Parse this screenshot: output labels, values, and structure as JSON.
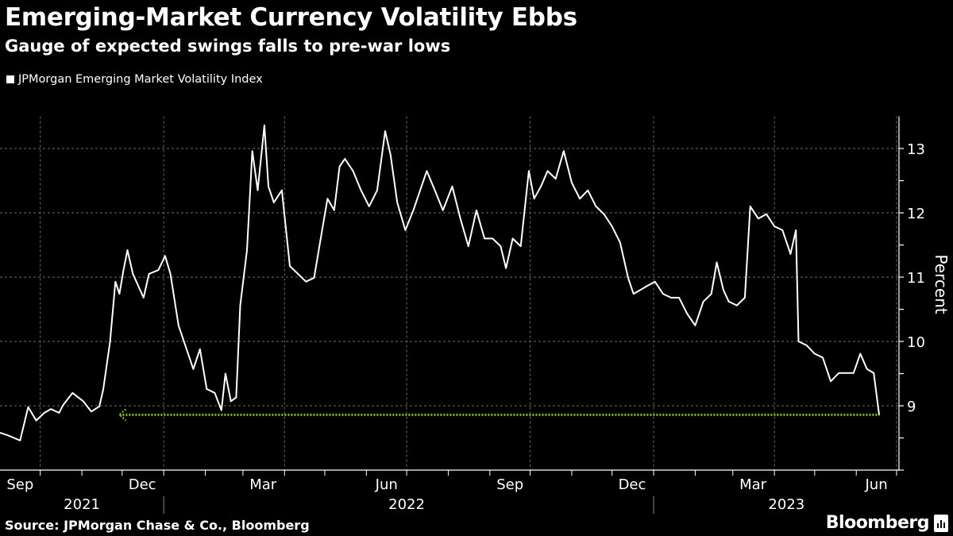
{
  "title": "Emerging-Market Currency Volatility Ebbs",
  "subtitle": "Gauge of expected swings falls to pre-war lows",
  "source": "Source: JPMorgan Chase & Co., Bloomberg",
  "brand": "Bloomberg",
  "chart_data": {
    "type": "line",
    "title": "Emerging-Market Currency Volatility Ebbs",
    "subtitle": "Gauge of expected swings falls to pre-war lows",
    "ylabel": "Percent",
    "ylim": [
      8,
      13.5
    ],
    "yticks": [
      9,
      10,
      11,
      12,
      13
    ],
    "xlim": [
      "2021-09-01",
      "2023-07-01"
    ],
    "x_tick_labels": [
      {
        "label": "Sep",
        "month": "2021-09"
      },
      {
        "label": "Dec",
        "month": "2021-12"
      },
      {
        "label": "Mar",
        "month": "2022-03"
      },
      {
        "label": "Jun",
        "month": "2022-06"
      },
      {
        "label": "Sep",
        "month": "2022-09"
      },
      {
        "label": "Dec",
        "month": "2022-12"
      },
      {
        "label": "Mar",
        "month": "2023-03"
      },
      {
        "label": "Jun",
        "month": "2023-06"
      }
    ],
    "year_labels": [
      {
        "label": "2021",
        "center": "2021-11-01"
      },
      {
        "label": "2022",
        "center": "2022-07-01"
      },
      {
        "label": "2023",
        "center": "2023-04-10"
      }
    ],
    "grid": true,
    "legend_placement": "top-left",
    "colors": {
      "series": "#ffffff",
      "reference": "#7fc31c",
      "grid": "#6b6b6b",
      "background": "#000000"
    },
    "series": [
      {
        "name": "JPMorgan Emerging Market Volatility Index",
        "x": [
          "2021-09-01",
          "2021-09-07",
          "2021-09-16",
          "2021-09-22",
          "2021-09-28",
          "2021-10-04",
          "2021-10-09",
          "2021-10-15",
          "2021-10-18",
          "2021-10-25",
          "2021-11-02",
          "2021-11-08",
          "2021-11-14",
          "2021-11-17",
          "2021-11-22",
          "2021-11-26",
          "2021-11-29",
          "2021-12-02",
          "2021-12-05",
          "2021-12-09",
          "2021-12-17",
          "2021-12-21",
          "2021-12-28",
          "2022-01-02",
          "2022-01-06",
          "2022-01-12",
          "2022-01-18",
          "2022-01-23",
          "2022-01-28",
          "2022-02-02",
          "2022-02-08",
          "2022-02-13",
          "2022-02-16",
          "2022-02-20",
          "2022-02-24",
          "2022-02-27",
          "2022-03-04",
          "2022-03-08",
          "2022-03-12",
          "2022-03-17",
          "2022-03-20",
          "2022-03-24",
          "2022-03-30",
          "2022-04-05",
          "2022-04-11",
          "2022-04-17",
          "2022-04-23",
          "2022-04-29",
          "2022-05-03",
          "2022-05-08",
          "2022-05-12",
          "2022-05-16",
          "2022-05-22",
          "2022-05-28",
          "2022-06-03",
          "2022-06-09",
          "2022-06-15",
          "2022-06-19",
          "2022-06-24",
          "2022-06-30",
          "2022-07-06",
          "2022-07-12",
          "2022-07-16",
          "2022-07-22",
          "2022-07-28",
          "2022-08-04",
          "2022-08-10",
          "2022-08-16",
          "2022-08-22",
          "2022-08-28",
          "2022-09-03",
          "2022-09-09",
          "2022-09-13",
          "2022-09-18",
          "2022-09-24",
          "2022-09-30",
          "2022-10-04",
          "2022-10-09",
          "2022-10-14",
          "2022-10-20",
          "2022-10-26",
          "2022-11-01",
          "2022-11-07",
          "2022-11-13",
          "2022-11-19",
          "2022-11-25",
          "2022-12-01",
          "2022-12-07",
          "2022-12-13",
          "2022-12-17",
          "2022-12-22",
          "2022-12-27",
          "2023-01-02",
          "2023-01-08",
          "2023-01-14",
          "2023-01-20",
          "2023-01-26",
          "2023-02-01",
          "2023-02-07",
          "2023-02-13",
          "2023-02-17",
          "2023-02-22",
          "2023-02-26",
          "2023-03-04",
          "2023-03-10",
          "2023-03-14",
          "2023-03-20",
          "2023-03-26",
          "2023-04-01",
          "2023-04-07",
          "2023-04-13",
          "2023-04-17",
          "2023-04-19",
          "2023-04-25",
          "2023-05-01",
          "2023-05-07",
          "2023-05-13",
          "2023-05-19",
          "2023-05-24",
          "2023-05-30",
          "2023-06-04",
          "2023-06-09",
          "2023-06-14",
          "2023-06-18"
        ],
        "values": [
          8.58,
          8.54,
          8.46,
          8.98,
          8.77,
          8.89,
          8.95,
          8.89,
          9.01,
          9.2,
          9.07,
          8.91,
          8.99,
          9.26,
          10.0,
          10.93,
          10.74,
          11.11,
          11.42,
          11.05,
          10.68,
          11.05,
          11.11,
          11.33,
          11.05,
          10.25,
          9.88,
          9.57,
          9.88,
          9.26,
          9.2,
          8.93,
          9.5,
          9.07,
          9.13,
          10.56,
          11.42,
          12.96,
          12.35,
          13.36,
          12.41,
          12.16,
          12.35,
          11.17,
          11.05,
          10.93,
          10.99,
          11.73,
          12.22,
          12.04,
          12.72,
          12.84,
          12.65,
          12.35,
          12.1,
          12.35,
          13.27,
          12.9,
          12.16,
          11.73,
          12.04,
          12.41,
          12.65,
          12.35,
          12.04,
          12.41,
          11.91,
          11.48,
          12.04,
          11.6,
          11.6,
          11.48,
          11.14,
          11.6,
          11.48,
          12.65,
          12.22,
          12.41,
          12.65,
          12.53,
          12.96,
          12.47,
          12.22,
          12.35,
          12.1,
          11.98,
          11.79,
          11.54,
          10.99,
          10.74,
          10.8,
          10.86,
          10.93,
          10.74,
          10.68,
          10.68,
          10.43,
          10.25,
          10.62,
          10.74,
          11.23,
          10.8,
          10.62,
          10.56,
          10.68,
          12.1,
          11.91,
          11.98,
          11.79,
          11.73,
          11.36,
          11.73,
          10.0,
          9.94,
          9.81,
          9.75,
          9.38,
          9.51,
          9.51,
          9.51,
          9.81,
          9.57,
          9.51,
          8.86
        ]
      }
    ],
    "reference_line": {
      "value": 8.86,
      "from": "2021-11-29",
      "to": "2023-06-18",
      "style": "dotted",
      "arrow": "left"
    }
  }
}
